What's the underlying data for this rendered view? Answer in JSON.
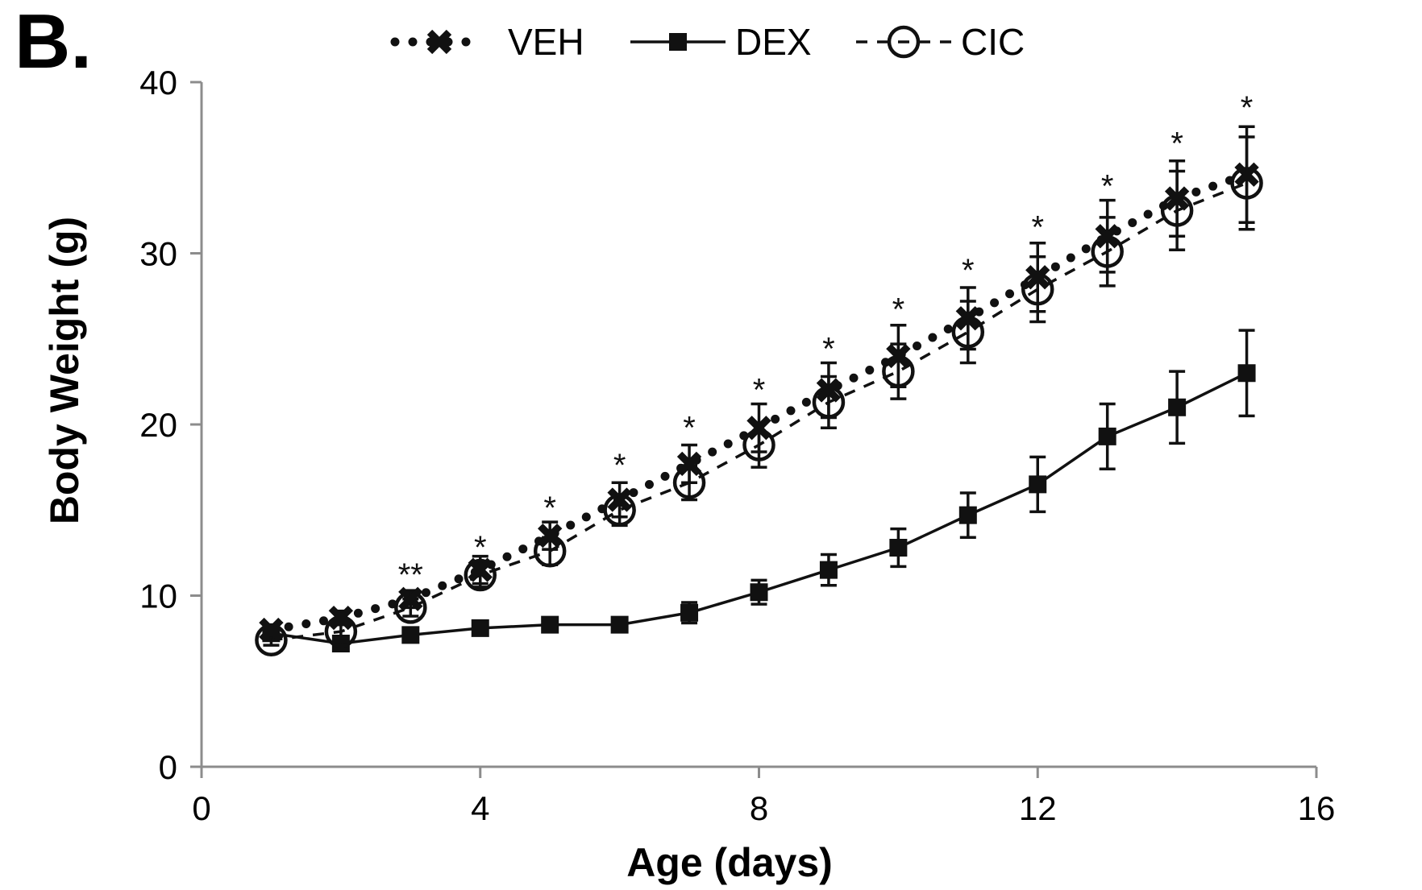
{
  "panel_label": "B.",
  "chart_data": {
    "type": "line",
    "xlabel": "Age (days)",
    "ylabel": "Body Weight (g)",
    "xlim": [
      0,
      16
    ],
    "ylim": [
      0,
      40
    ],
    "xticks": [
      0,
      4,
      8,
      12,
      16
    ],
    "yticks": [
      0,
      10,
      20,
      30,
      40
    ],
    "x": [
      1,
      2,
      3,
      4,
      5,
      6,
      7,
      8,
      9,
      10,
      11,
      12,
      13,
      14,
      15
    ],
    "grid": false,
    "legend_position": "top",
    "series": [
      {
        "name": "VEH",
        "line_style": "dotted",
        "marker": "x",
        "values": [
          8.0,
          8.7,
          9.8,
          11.5,
          13.5,
          15.6,
          17.7,
          19.8,
          22.0,
          24.0,
          26.2,
          28.6,
          31.0,
          33.2,
          34.6
        ],
        "error": [
          0.3,
          0.4,
          0.5,
          0.8,
          0.8,
          1.0,
          1.1,
          1.4,
          1.6,
          1.8,
          1.8,
          2.0,
          2.1,
          2.2,
          2.8
        ]
      },
      {
        "name": "DEX",
        "line_style": "solid",
        "marker": "square",
        "values": [
          7.8,
          7.2,
          7.7,
          8.1,
          8.3,
          8.3,
          9.0,
          10.2,
          11.5,
          12.8,
          14.7,
          16.5,
          19.3,
          21.0,
          23.0
        ],
        "error": [
          0.2,
          0.3,
          0.3,
          0.3,
          0.4,
          0.4,
          0.6,
          0.7,
          0.9,
          1.1,
          1.3,
          1.6,
          1.9,
          2.1,
          2.5
        ]
      },
      {
        "name": "CIC",
        "line_style": "dashed",
        "marker": "open-circle",
        "values": [
          7.4,
          7.9,
          9.3,
          11.2,
          12.6,
          15.0,
          16.6,
          18.8,
          21.3,
          23.1,
          25.4,
          27.9,
          30.1,
          32.5,
          34.1
        ],
        "error": [
          0.3,
          0.4,
          0.5,
          0.7,
          0.8,
          0.9,
          1.0,
          1.3,
          1.5,
          1.6,
          1.8,
          1.9,
          2.0,
          2.3,
          2.7
        ]
      }
    ],
    "annotations": [
      {
        "x": 3,
        "text": "**",
        "y": 12.0
      },
      {
        "x": 4,
        "text": "*",
        "y": 13.6
      },
      {
        "x": 5,
        "text": "*",
        "y": 15.9
      },
      {
        "x": 6,
        "text": "*",
        "y": 18.4
      },
      {
        "x": 7,
        "text": "*",
        "y": 20.6
      },
      {
        "x": 8,
        "text": "*",
        "y": 22.8
      },
      {
        "x": 9,
        "text": "*",
        "y": 25.2
      },
      {
        "x": 10,
        "text": "*",
        "y": 27.5
      },
      {
        "x": 11,
        "text": "*",
        "y": 29.8
      },
      {
        "x": 12,
        "text": "*",
        "y": 32.3
      },
      {
        "x": 13,
        "text": "*",
        "y": 34.7
      },
      {
        "x": 14,
        "text": "*",
        "y": 37.2
      },
      {
        "x": 15,
        "text": "*",
        "y": 39.3
      }
    ]
  }
}
